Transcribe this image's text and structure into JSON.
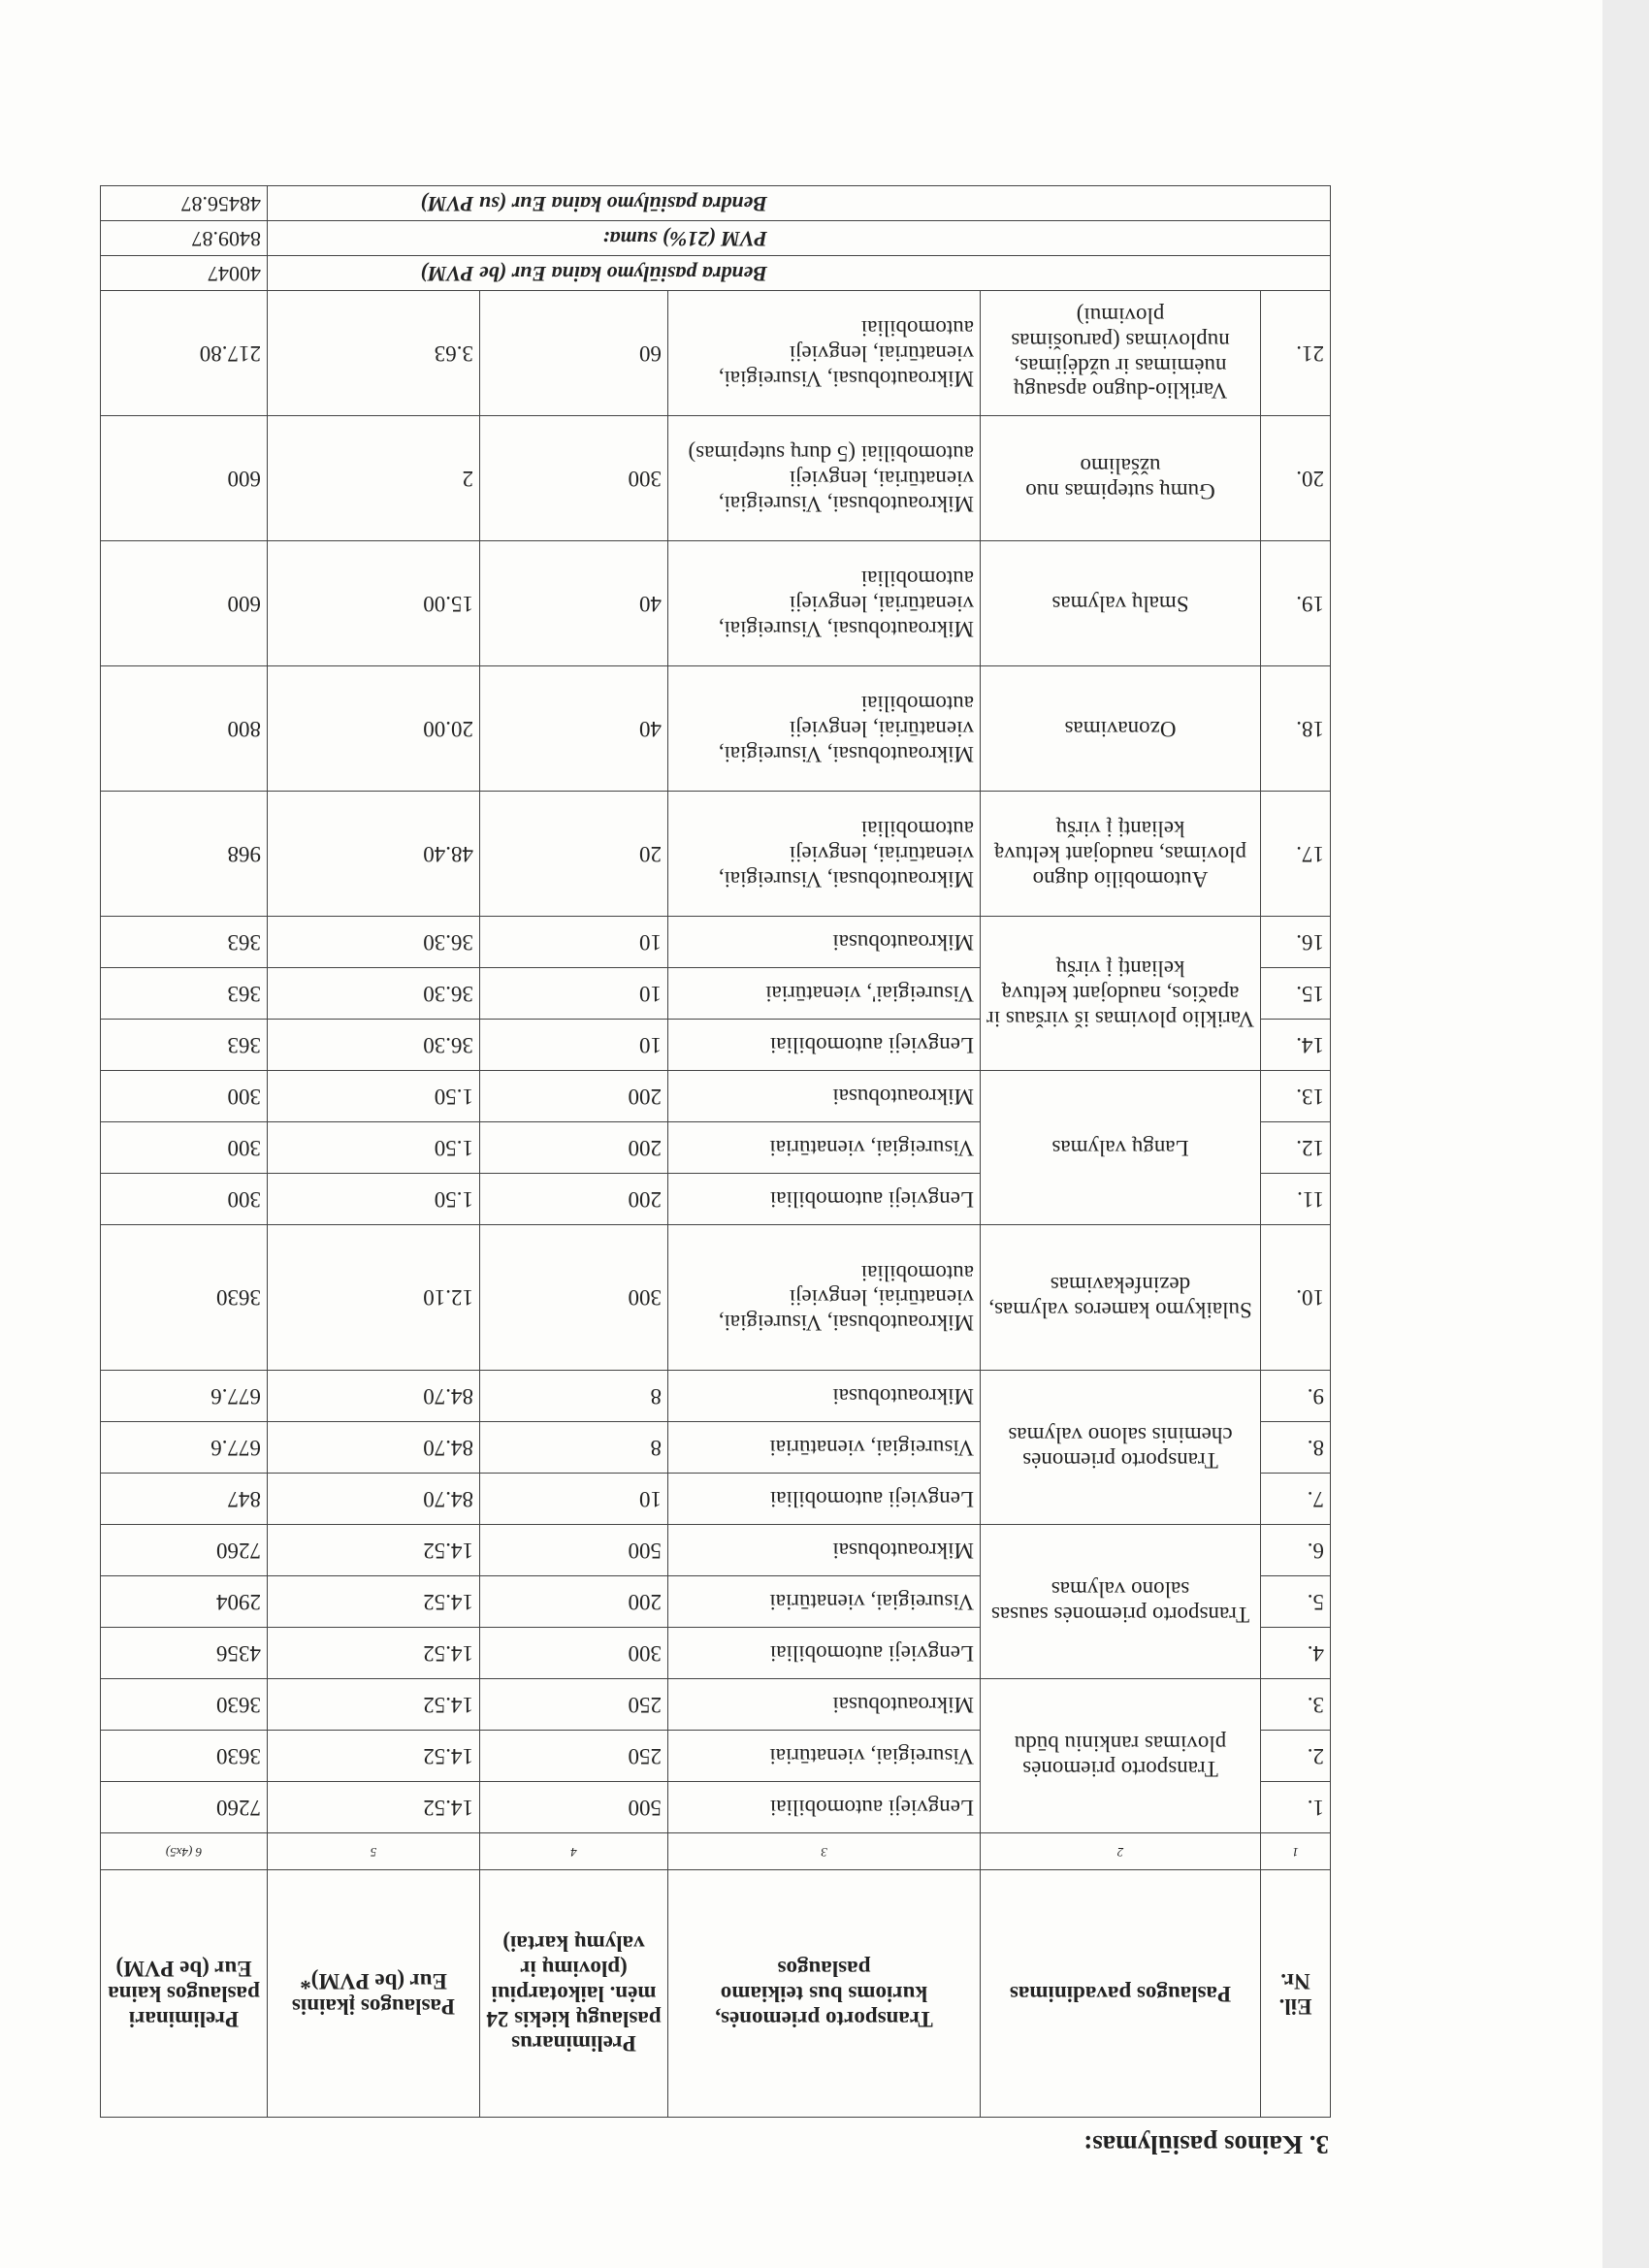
{
  "title": "3. Kainos pasiūlymas:",
  "headers": [
    "Eil. Nr.",
    "Paslaugos pavadinimas",
    "Transporto priemonės, kurioms bus teikiamo paslaugos",
    "Preliminarus paslaugų kiekis 24 mėn. laikotarpiui (plovimų ir valymų kartai)",
    "Paslaugos įkainis Eur (be PVM)*",
    "Preliminari paslaugos kaina Eur (be PVM)"
  ],
  "column_numbers": [
    "1",
    "2",
    "3",
    "4",
    "5",
    "6 (4x5)"
  ],
  "groups": [
    {
      "name": "Transporto priemonės plovimas rankiniu būdu",
      "rows": [
        {
          "nr": "1.",
          "vehicles": "Lengvieji automobiliai",
          "qty": "500",
          "price": "14.52",
          "total": "7260"
        },
        {
          "nr": "2.",
          "vehicles": "Visureigiai, vienatūriai",
          "qty": "250",
          "price": "14.52",
          "total": "3630"
        },
        {
          "nr": "3.",
          "vehicles": "Mikroautobusai",
          "qty": "250",
          "price": "14.52",
          "total": "3630"
        }
      ]
    },
    {
      "name": "Transporto priemonės sausas salono valymas",
      "rows": [
        {
          "nr": "4.",
          "vehicles": "Lengvieji automobiliai",
          "qty": "300",
          "price": "14.52",
          "total": "4356"
        },
        {
          "nr": "5.",
          "vehicles": "Visureigiai, vienatūriai",
          "qty": "200",
          "price": "14.52",
          "total": "2904"
        },
        {
          "nr": "6.",
          "vehicles": "Mikroautobusai",
          "qty": "500",
          "price": "14.52",
          "total": "7260"
        }
      ]
    },
    {
      "name": "Transporto priemonės cheminis salono valymas",
      "rows": [
        {
          "nr": "7.",
          "vehicles": "Lengvieji automobiliai",
          "qty": "10",
          "price": "84.70",
          "total": "847"
        },
        {
          "nr": "8.",
          "vehicles": "Visureigiai, vienatūriai",
          "qty": "8",
          "price": "84.70",
          "total": "677.6"
        },
        {
          "nr": "9.",
          "vehicles": "Mikroautobusai",
          "qty": "8",
          "price": "84.70",
          "total": "677.6"
        }
      ]
    },
    {
      "name": "Sulaikymo kameros valymas, dezinfekavimas",
      "cls": "tall",
      "rows": [
        {
          "nr": "10.",
          "vehicles": "Mikroautobusai, Visureigiai, vienatūriai, lengvieji automobiliai",
          "qty": "300",
          "price": "12.10",
          "total": "3630"
        }
      ]
    },
    {
      "name": "Langų valymas",
      "rows": [
        {
          "nr": "11.",
          "vehicles": "Lengvieji automobiliai",
          "qty": "200",
          "price": "1.50",
          "total": "300"
        },
        {
          "nr": "12.",
          "vehicles": "Visureigiai, vienatūriai",
          "qty": "200",
          "price": "1.50",
          "total": "300"
        },
        {
          "nr": "13.",
          "vehicles": "Mikroautobusai",
          "qty": "200",
          "price": "1.50",
          "total": "300"
        }
      ]
    },
    {
      "name": "Variklio plovimas iš viršaus ir apačios, naudojant keltuvą keliantį į viršų",
      "rows": [
        {
          "nr": "14.",
          "vehicles": "Lengvieji automobiliai",
          "qty": "10",
          "price": "36.30",
          "total": "363"
        },
        {
          "nr": "15.",
          "vehicles": "Visureigiai', vienatūriai",
          "qty": "10",
          "price": "36.30",
          "total": "363"
        },
        {
          "nr": "16.",
          "vehicles": "Mikroautobusai",
          "qty": "10",
          "price": "36.30",
          "total": "363"
        }
      ]
    },
    {
      "name": "Automobilio dugno plovimas, naudojant keltuvą keliantį į viršų",
      "cls": "big",
      "rows": [
        {
          "nr": "17.",
          "vehicles": "Mikroautobusai, Visureigiai, vienatūriai, lengvieji automobiliai",
          "qty": "20",
          "price": "48.40",
          "total": "968"
        }
      ]
    },
    {
      "name": "Ozonavimas",
      "cls": "big",
      "rows": [
        {
          "nr": "18.",
          "vehicles": "Mikroautobusai, Visureigiai, vienatūriai, lengvieji automobiliai",
          "qty": "40",
          "price": "20.00",
          "total": "800"
        }
      ]
    },
    {
      "name": "Smalų valymas",
      "cls": "big",
      "rows": [
        {
          "nr": "19.",
          "vehicles": "Mikroautobusai, Visureigiai, vienatūriai, lengvieji automobiliai",
          "qty": "40",
          "price": "15.00",
          "total": "600"
        }
      ]
    },
    {
      "name": "Gumų sutepimas nuo užšalimo",
      "cls": "big",
      "rows": [
        {
          "nr": "20.",
          "vehicles": "Mikroautobusai, Visureigiai, vienatūriai, lengvieji automobiliai (5 durų sutepimas)",
          "qty": "300",
          "price": "2",
          "total": "600"
        }
      ]
    },
    {
      "name": "Variklio-dugno apsaugų nuėmimas ir uždėjimas, nuplovimas (paruošimas plovimui)",
      "cls": "big",
      "rows": [
        {
          "nr": "21.",
          "vehicles": "Mikroautobusai, Visureigiai, vienatūriai, lengvieji automobiliai",
          "qty": "60",
          "price": "3.63",
          "total": "217.80"
        }
      ]
    }
  ],
  "totals": [
    {
      "label": "Bendra pasiūlymo kaina Eur (be PVM)",
      "value": "40047"
    },
    {
      "label": "PVM (21%) suma:",
      "value": "8409.87"
    },
    {
      "label": "Bendra pasiūlymo kaina Eur (su PVM)",
      "value": "48456.87"
    }
  ]
}
